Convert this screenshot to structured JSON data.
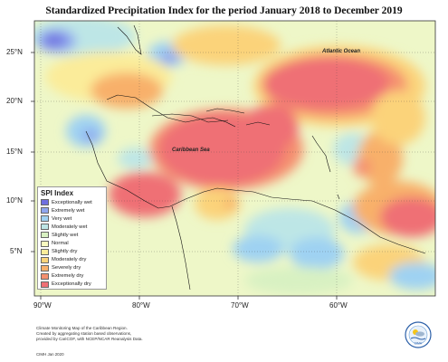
{
  "title": "Standardized Precipitation Index for the period January 2018 to December 2019",
  "lat_labels": [
    "25°N",
    "20°N",
    "15°N",
    "10°N",
    "5°N"
  ],
  "lon_labels": [
    "90°W",
    "80°W",
    "70°W",
    "60°W"
  ],
  "places": {
    "atlantic": "Atlantic Ocean",
    "caribbean": "Caribbean Sea"
  },
  "legend": {
    "title": "SPI Index",
    "items": [
      {
        "label": "Exceptionally wet",
        "color": "#6f6fe0"
      },
      {
        "label": "Extremely wet",
        "color": "#8fa6ee"
      },
      {
        "label": "Very wet",
        "color": "#9fd2f2"
      },
      {
        "label": "Moderately wet",
        "color": "#bde6e6"
      },
      {
        "label": "Slightly wet",
        "color": "#d8f1c2"
      },
      {
        "label": "Normal",
        "color": "#f7f9bf"
      },
      {
        "label": "Slightly dry",
        "color": "#fbec9a"
      },
      {
        "label": "Moderately dry",
        "color": "#fbd37a"
      },
      {
        "label": "Severely dry",
        "color": "#f8b06b"
      },
      {
        "label": "Extremely dry",
        "color": "#f5906f"
      },
      {
        "label": "Exceptionally dry",
        "color": "#ef6f74"
      }
    ]
  },
  "footnote": [
    "Climate Monitoring Map of the Caribbean Region.",
    "Created by aggregating station based observations,",
    "provided by CariCOF, with NCEP/NCAR Reanalysis Data."
  ],
  "credit": "CIMH Jan 2020",
  "logo_text": "CIMH"
}
